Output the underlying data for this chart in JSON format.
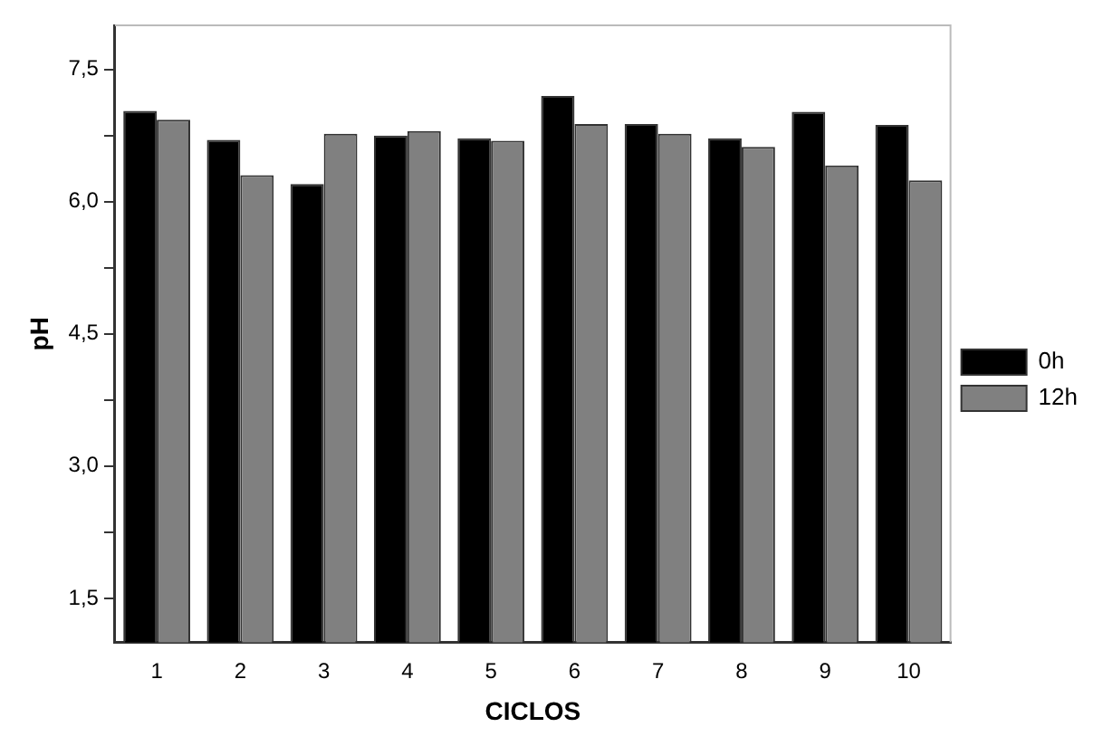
{
  "chart_data": {
    "type": "bar",
    "xlabel": "CICLOS",
    "ylabel": "pH",
    "categories": [
      "1",
      "2",
      "3",
      "4",
      "5",
      "6",
      "7",
      "8",
      "9",
      "10"
    ],
    "series": [
      {
        "name": "0h",
        "color": "#000000",
        "values": [
          7.03,
          6.7,
          6.2,
          6.75,
          6.72,
          7.2,
          6.88,
          6.72,
          7.02,
          6.87
        ]
      },
      {
        "name": "12h",
        "color": "#808080",
        "values": [
          6.93,
          6.3,
          6.77,
          6.8,
          6.69,
          6.88,
          6.77,
          6.62,
          6.41,
          6.24
        ]
      }
    ],
    "ylim": [
      1,
      8
    ],
    "yticks": [
      {
        "value": 1.5,
        "label": "1,5"
      },
      {
        "value": 2.25,
        "label": null
      },
      {
        "value": 3,
        "label": "3,0"
      },
      {
        "value": 3.75,
        "label": null
      },
      {
        "value": 4.5,
        "label": "4,5"
      },
      {
        "value": 5.25,
        "label": null
      },
      {
        "value": 6,
        "label": "6,0"
      },
      {
        "value": 6.75,
        "label": null
      },
      {
        "value": 7.5,
        "label": "7,5"
      }
    ],
    "grid": false,
    "legend": "right"
  }
}
